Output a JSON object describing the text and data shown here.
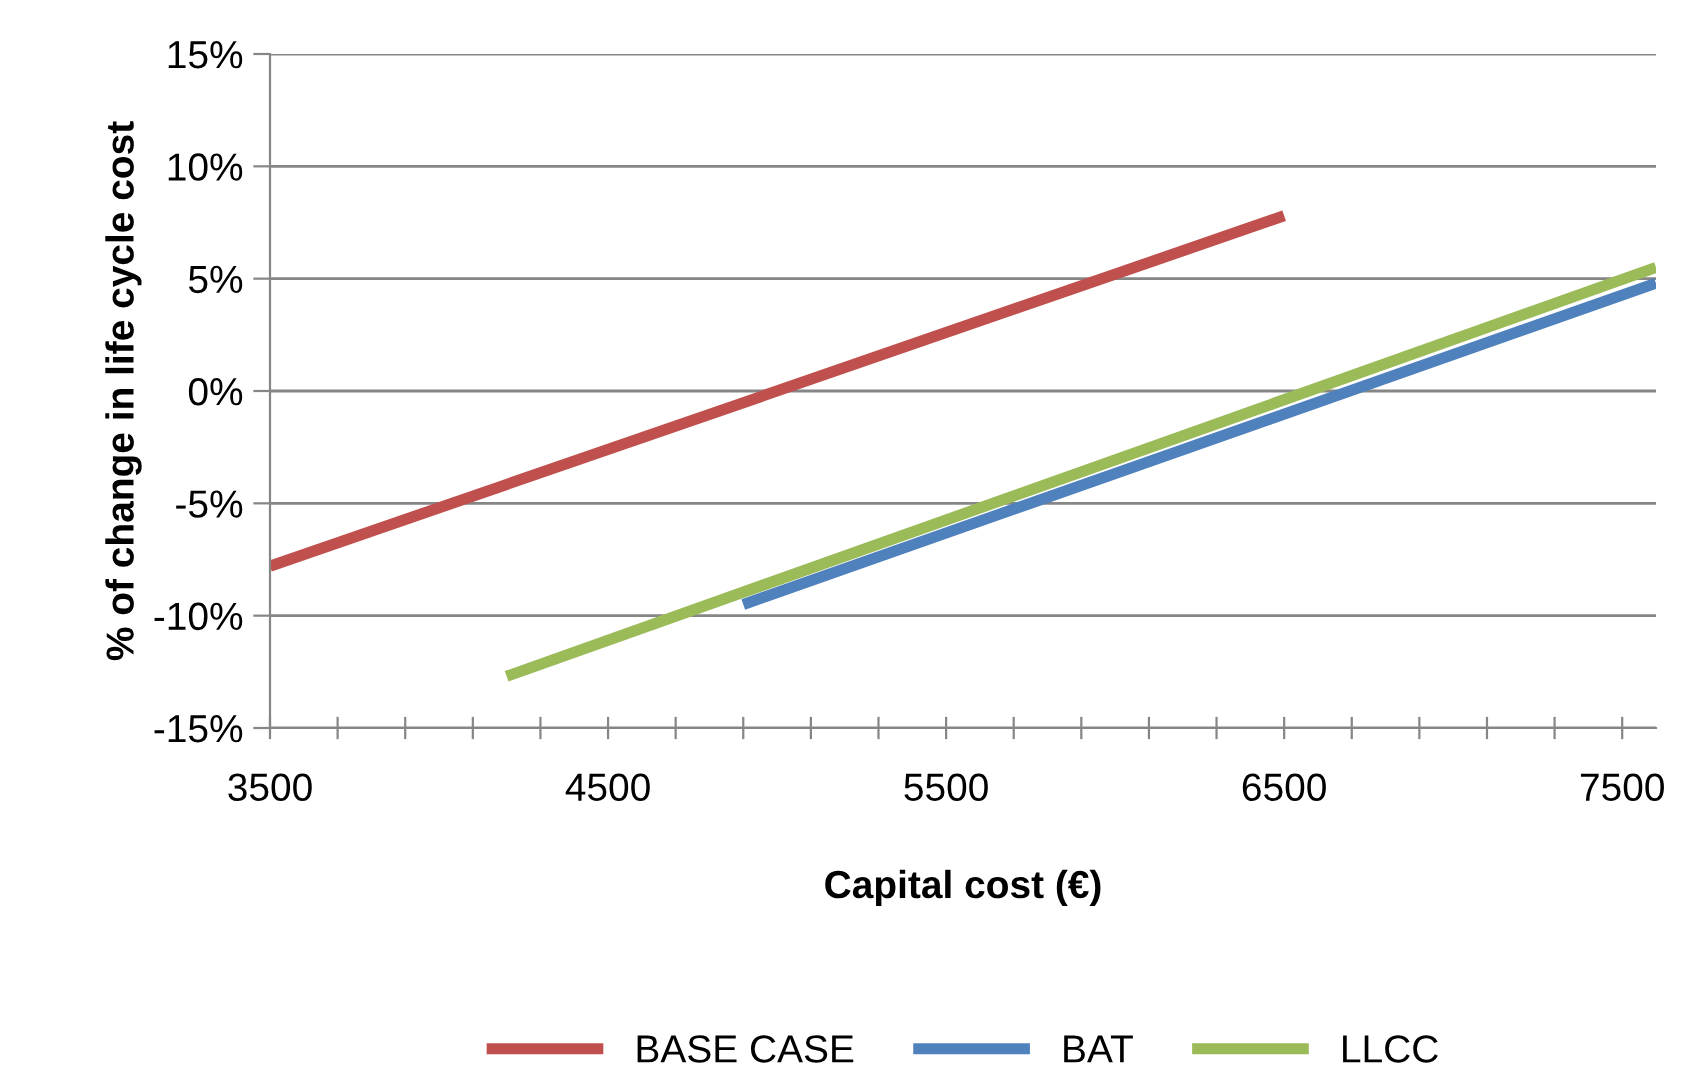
{
  "chart_data": {
    "type": "line",
    "xlabel": "Capital cost (€)",
    "ylabel": "% of change in life cycle cost",
    "series": [
      {
        "name": "BASE CASE",
        "color": "#c0504d",
        "x": [
          3500,
          6500
        ],
        "values": [
          -7.8,
          7.8
        ]
      },
      {
        "name": "BAT",
        "color": "#4f81bd",
        "x": [
          4900,
          7600
        ],
        "values": [
          -9.5,
          4.8
        ]
      },
      {
        "name": "LLCC",
        "color": "#9bbb59",
        "x": [
          4200,
          7600
        ],
        "values": [
          -12.7,
          5.5
        ]
      }
    ],
    "xlim": [
      3500,
      7600
    ],
    "xticks": [
      3500,
      {
        "value": 3700,
        "label": null
      },
      {
        "value": 3900,
        "label": null
      },
      {
        "value": 4100,
        "label": null
      },
      {
        "value": 4300,
        "label": null
      },
      4500,
      {
        "value": 4700,
        "label": null
      },
      {
        "value": 4900,
        "label": null
      },
      {
        "value": 5100,
        "label": null
      },
      {
        "value": 5300,
        "label": null
      },
      5500,
      {
        "value": 5700,
        "label": null
      },
      {
        "value": 5900,
        "label": null
      },
      {
        "value": 6100,
        "label": null
      },
      {
        "value": 6300,
        "label": null
      },
      6500,
      {
        "value": 6700,
        "label": null
      },
      {
        "value": 6900,
        "label": null
      },
      {
        "value": 7100,
        "label": null
      },
      {
        "value": 7300,
        "label": null
      },
      7500
    ],
    "ylim": [
      -15,
      15
    ],
    "yticks": [
      {
        "value": -15,
        "label": "-15%"
      },
      {
        "value": -10,
        "label": "-10%"
      },
      {
        "value": -5,
        "label": "-5%"
      },
      {
        "value": 0,
        "label": "0%"
      },
      {
        "value": 5,
        "label": "5%"
      },
      {
        "value": 10,
        "label": "10%"
      },
      {
        "value": 15,
        "label": "15%"
      }
    ],
    "grid": "y",
    "legend": "bottom",
    "marker": "none",
    "line_style": "solid"
  }
}
